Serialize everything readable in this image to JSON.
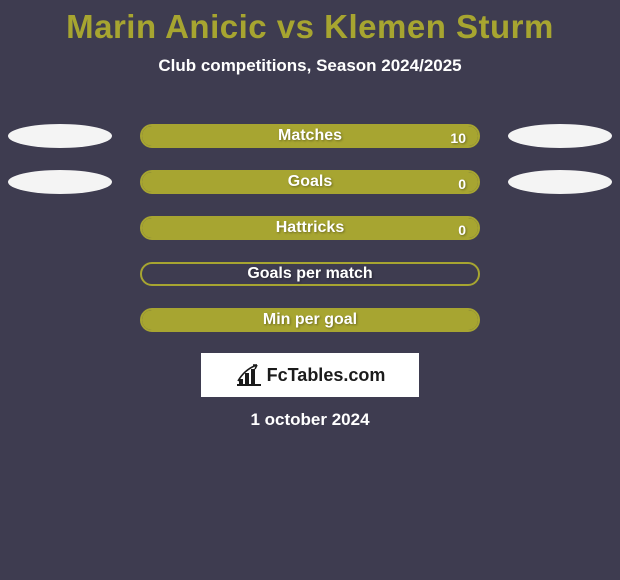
{
  "background_color": "#3e3c50",
  "title": {
    "text": "Marin Anicic vs Klemen Sturm",
    "color": "#a7a530",
    "fontsize": 33
  },
  "subtitle": {
    "text": "Club competitions, Season 2024/2025",
    "color": "#ffffff",
    "fontsize": 17
  },
  "stats": {
    "bar_fill_color": "#a7a531",
    "bar_border_color": "#a7a531",
    "label_color": "#ffffff",
    "value_color": "#ffffff",
    "ellipse_color": "#f4f4f4",
    "rows": [
      {
        "label": "Matches",
        "value": "10",
        "fill_pct": 100,
        "left_ellipse": true,
        "right_ellipse": true
      },
      {
        "label": "Goals",
        "value": "0",
        "fill_pct": 100,
        "left_ellipse": true,
        "right_ellipse": true
      },
      {
        "label": "Hattricks",
        "value": "0",
        "fill_pct": 100,
        "left_ellipse": false,
        "right_ellipse": false
      },
      {
        "label": "Goals per match",
        "value": "",
        "fill_pct": 0,
        "left_ellipse": false,
        "right_ellipse": false
      },
      {
        "label": "Min per goal",
        "value": "",
        "fill_pct": 100,
        "left_ellipse": false,
        "right_ellipse": false
      }
    ]
  },
  "logo": {
    "box_bg": "#ffffff",
    "icon_color": "#1b1b1b",
    "text": "FcTables.com",
    "text_color": "#1b1b1b"
  },
  "date": {
    "text": "1 october 2024",
    "color": "#ffffff"
  }
}
